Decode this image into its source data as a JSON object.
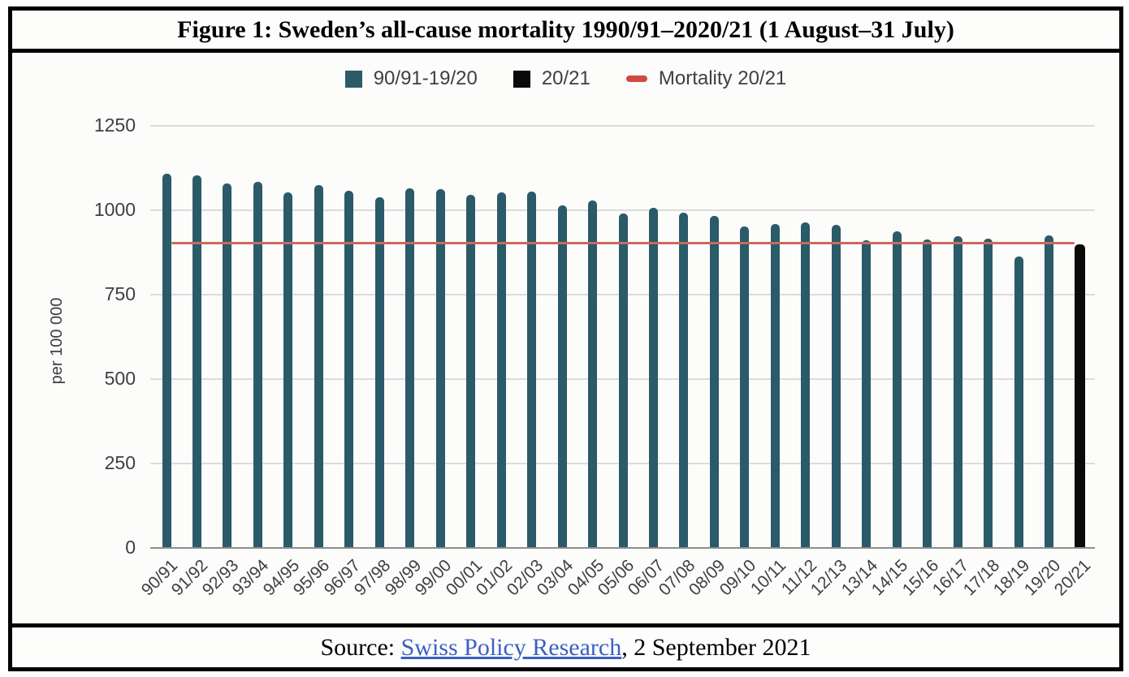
{
  "title": "Figure 1: Sweden’s all-cause mortality 1990/91–2020/21 (1 August–31 July)",
  "legend": {
    "items": [
      {
        "label": "90/91-19/20",
        "swatch": "square",
        "color": "#2b5a69"
      },
      {
        "label": "20/21",
        "swatch": "square",
        "color": "#0a0a0a"
      },
      {
        "label": "Mortality 20/21",
        "swatch": "dash",
        "color": "#d04a3e"
      }
    ]
  },
  "chart_data": {
    "type": "bar",
    "title": "Sweden's all-cause mortality 1990/91–2020/21 (1 August–31 July)",
    "xlabel": "",
    "ylabel": "per 100 000",
    "ylim": [
      0,
      1250
    ],
    "yticks": [
      0,
      250,
      500,
      750,
      1000,
      1250
    ],
    "grid": true,
    "legend_position": "top",
    "categories": [
      "90/91",
      "91/92",
      "92/93",
      "93/94",
      "94/95",
      "95/96",
      "96/97",
      "97/98",
      "98/99",
      "99/00",
      "00/01",
      "01/02",
      "02/03",
      "03/04",
      "04/05",
      "05/06",
      "06/07",
      "07/08",
      "08/09",
      "09/10",
      "10/11",
      "11/12",
      "12/13",
      "13/14",
      "14/15",
      "15/16",
      "16/17",
      "17/18",
      "18/19",
      "19/20",
      "20/21"
    ],
    "values": [
      1108,
      1104,
      1080,
      1085,
      1053,
      1074,
      1058,
      1038,
      1064,
      1062,
      1045,
      1054,
      1056,
      1014,
      1028,
      990,
      1008,
      993,
      983,
      953,
      958,
      965,
      957,
      911,
      938,
      913,
      923,
      917,
      862,
      925,
      900
    ],
    "series": [
      {
        "name": "90/91-19/20",
        "color": "#2b5a69"
      },
      {
        "name": "20/21",
        "color": "#0a0a0a"
      }
    ],
    "reference_line": {
      "name": "Mortality 20/21",
      "value": 903,
      "color": "#c96a5f"
    }
  },
  "footer": {
    "prefix": "Source: ",
    "link_text": "Swiss Policy Research",
    "suffix": ", 2 September 2021",
    "link_color": "#3b5fc4"
  }
}
